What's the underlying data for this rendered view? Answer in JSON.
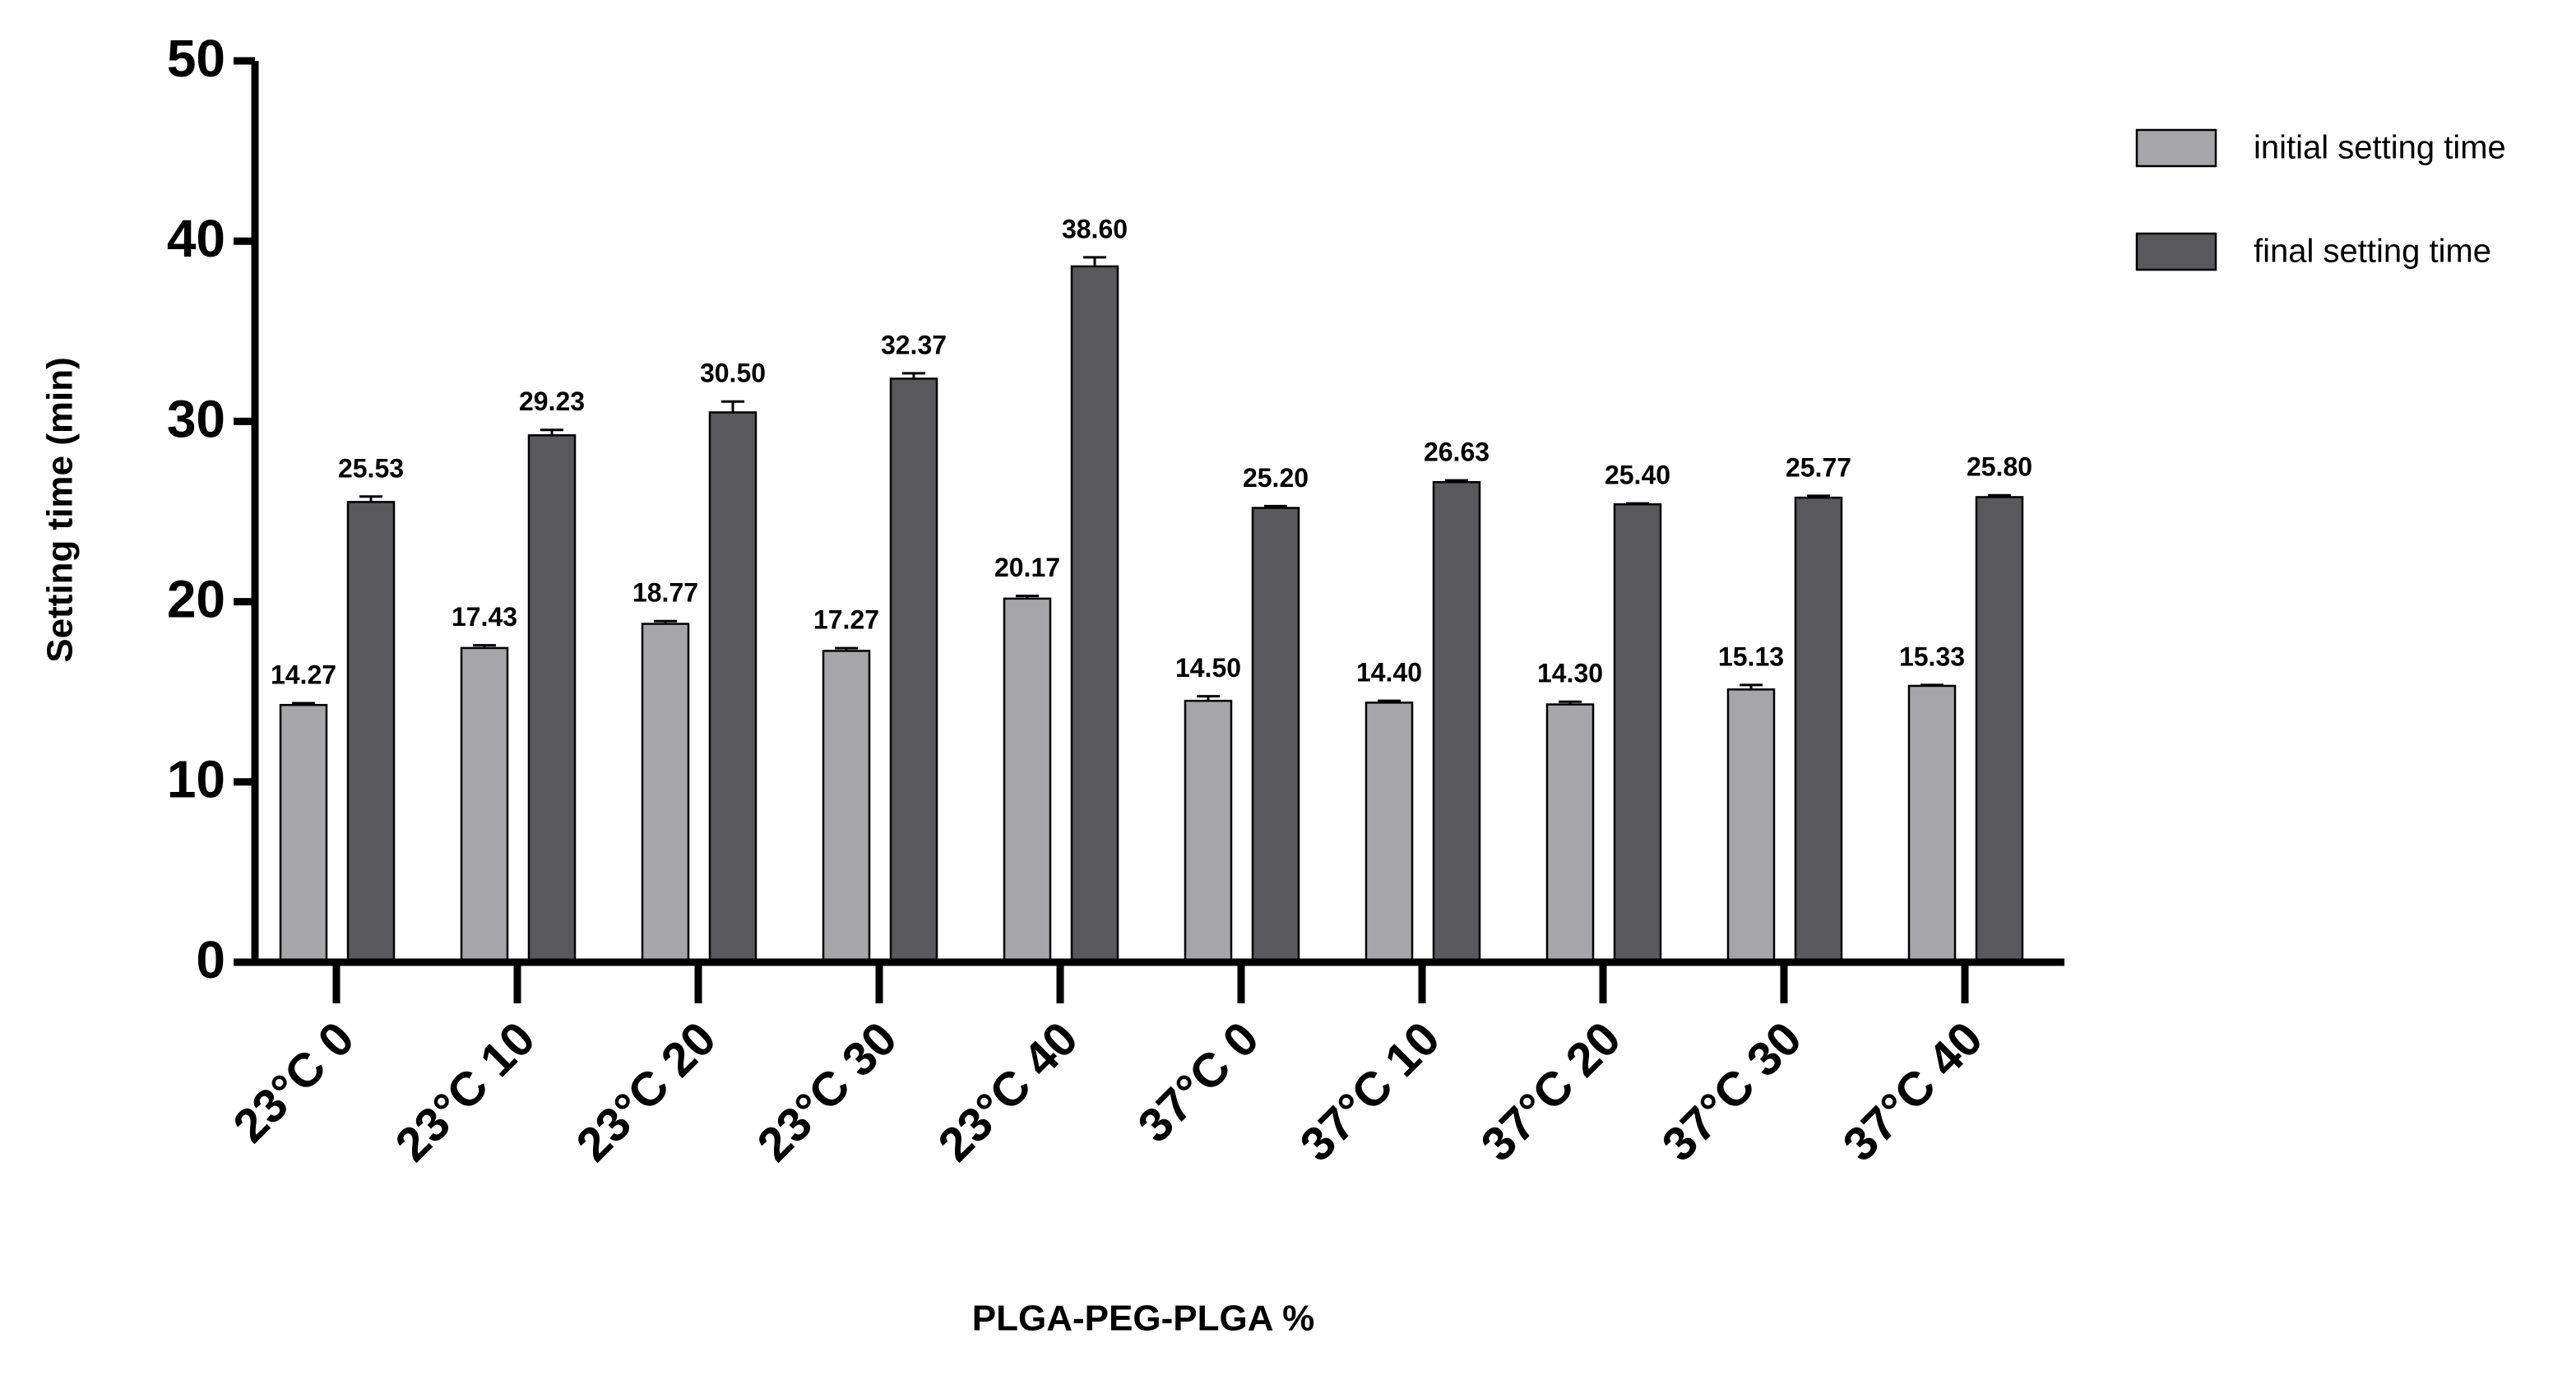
{
  "chart_data": {
    "type": "bar",
    "x_label": "PLGA-PEG-PLGA %",
    "y_label": "Setting time (min)",
    "categories": [
      "23°C 0",
      "23°C 10",
      "23°C 20",
      "23°C 30",
      "23°C 40",
      "37°C 0",
      "37°C 10",
      "37°C 20",
      "37°C 30",
      "37°C 40"
    ],
    "series": [
      {
        "name": "initial setting time",
        "color": "#a6a6a8",
        "values": [
          14.27,
          17.43,
          18.77,
          17.27,
          20.17,
          14.5,
          14.4,
          14.3,
          15.13,
          15.33
        ],
        "value_labels": [
          "14.27",
          "17.43",
          "18.77",
          "17.27",
          "20.17",
          "14.50",
          "14.40",
          "14.30",
          "15.13",
          "15.33"
        ],
        "errors": [
          0.1,
          0.15,
          0.15,
          0.15,
          0.15,
          0.25,
          0.1,
          0.15,
          0.25,
          0.05
        ]
      },
      {
        "name": "final setting time",
        "color": "#59595b",
        "values": [
          25.53,
          29.23,
          30.5,
          32.37,
          38.6,
          25.2,
          26.63,
          25.4,
          25.77,
          25.8
        ],
        "value_labels": [
          "25.53",
          "29.23",
          "30.50",
          "32.37",
          "38.60",
          "25.20",
          "26.63",
          "25.40",
          "25.77",
          "25.80"
        ],
        "errors": [
          0.3,
          0.3,
          0.6,
          0.3,
          0.5,
          0.1,
          0.1,
          0.05,
          0.1,
          0.1
        ]
      }
    ],
    "ylim": [
      0,
      50
    ],
    "yticks": [
      0,
      10,
      20,
      30,
      40,
      50
    ],
    "grid": false,
    "legend": "upper right"
  }
}
